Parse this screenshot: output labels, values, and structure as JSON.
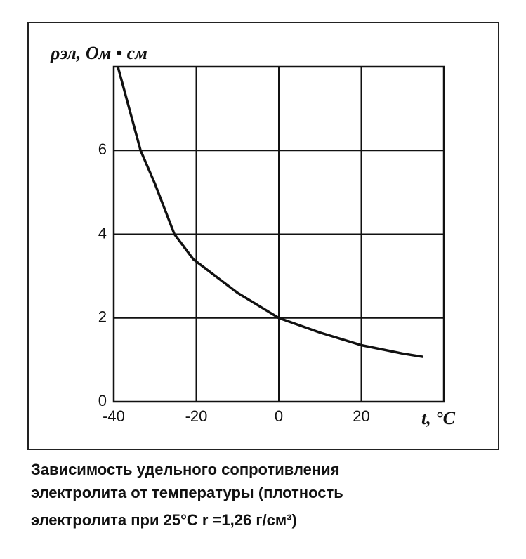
{
  "chart_data": {
    "type": "line",
    "y_label": "ρэл, Ом • см",
    "x_label": "t, °C",
    "caption": [
      "Зависимость удельного сопротивления",
      "электролита от температуры (плотность",
      "электролита при 25°C r =1,26 г/см³)"
    ],
    "x": [
      -39,
      -33.5,
      -30,
      -25.3,
      -20.7,
      -10,
      0,
      10,
      20,
      30,
      35
    ],
    "series": [
      {
        "color": "#111111",
        "values": [
          8,
          6,
          5.2,
          4,
          3.4,
          2.6,
          2,
          1.65,
          1.35,
          1.15,
          1.07
        ]
      }
    ],
    "xlim": [
      -40,
      40
    ],
    "xticks": [
      -40,
      -20,
      0,
      20
    ],
    "ylim": [
      0,
      8
    ],
    "yticks": [
      0,
      2,
      4,
      6
    ],
    "grid": true
  }
}
